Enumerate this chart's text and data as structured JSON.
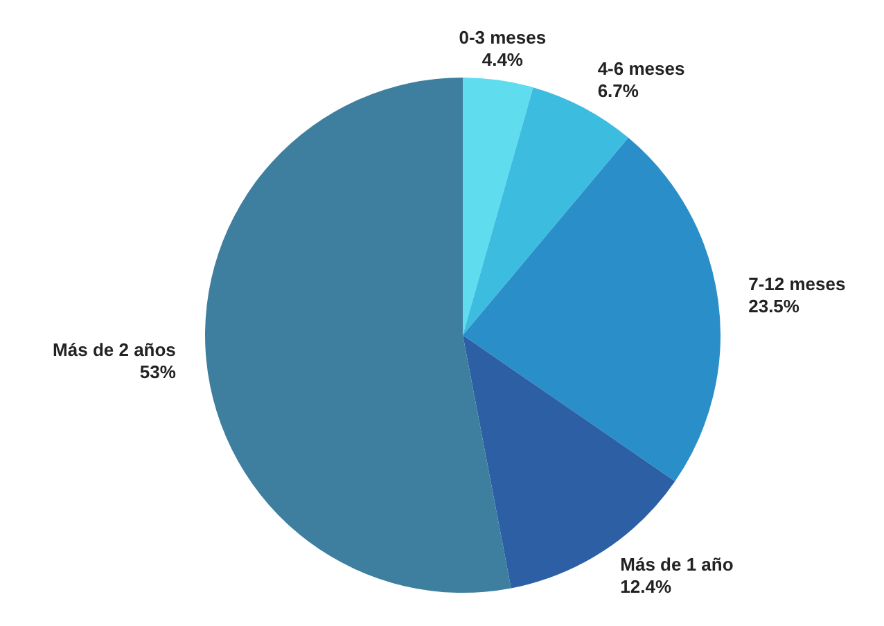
{
  "chart_data": {
    "type": "pie",
    "categories": [
      "0-3 meses",
      "4-6 meses",
      "7-12 meses",
      "Más de 1 año",
      "Más de 2 años"
    ],
    "values": [
      4.4,
      6.7,
      23.5,
      12.4,
      53
    ],
    "value_labels": [
      "4.4%",
      "6.7%",
      "23.5%",
      "12.4%",
      "53%"
    ],
    "colors": [
      "#5fdcee",
      "#3cbde0",
      "#2a8ec8",
      "#2c5fa4",
      "#3e7f9f"
    ],
    "legend": false
  }
}
